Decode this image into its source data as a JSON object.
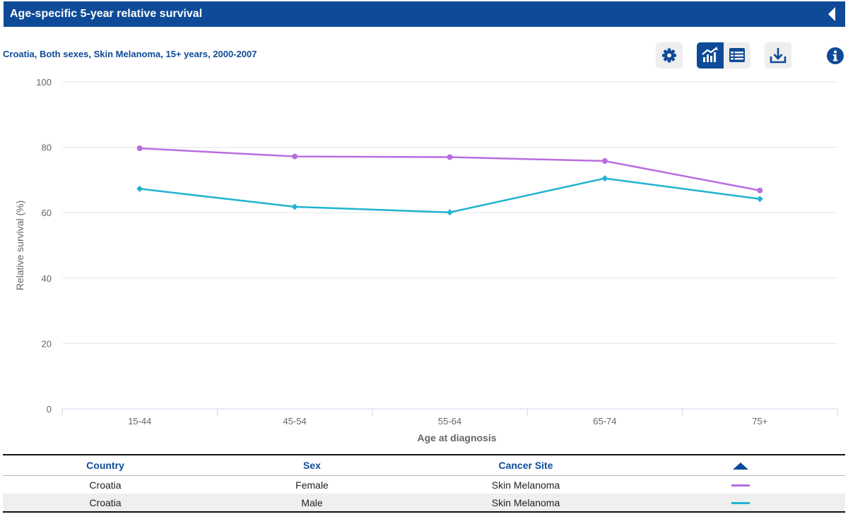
{
  "header": {
    "title": "Age-specific 5-year relative survival"
  },
  "subtitle": "Croatia, Both sexes, Skin Melanoma, 15+ years, 2000-2007",
  "toolbar": {
    "icons": [
      "gear-icon",
      "line-chart-icon",
      "table-icon",
      "download-icon",
      "info-icon"
    ],
    "active_view": "chart",
    "accent_color": "#0e4a97"
  },
  "chart_data": {
    "type": "line",
    "categories": [
      "15-44",
      "45-54",
      "55-64",
      "65-74",
      "75+"
    ],
    "series": [
      {
        "name": "Female",
        "values": [
          79.7,
          77.2,
          77.0,
          75.8,
          66.8
        ],
        "color": "#b86ee0",
        "marker": "circle"
      },
      {
        "name": "Male",
        "values": [
          67.3,
          61.8,
          60.1,
          70.5,
          64.2
        ],
        "color": "#1fb4cf",
        "marker": "diamond"
      }
    ],
    "xlabel": "Age at diagnosis",
    "ylabel": "Relative survival (%)",
    "ylim": [
      0,
      100
    ],
    "yticks": [
      0,
      20,
      40,
      60,
      80,
      100
    ],
    "grid": true,
    "legend": "table below chart"
  },
  "legend_table": {
    "headers": {
      "country": "Country",
      "sex": "Sex",
      "site": "Cancer Site"
    },
    "rows": [
      {
        "country": "Croatia",
        "sex": "Female",
        "site": "Skin Melanoma",
        "color": "#b86ee0"
      },
      {
        "country": "Croatia",
        "sex": "Male",
        "site": "Skin Melanoma",
        "color": "#1fb4cf"
      }
    ]
  }
}
